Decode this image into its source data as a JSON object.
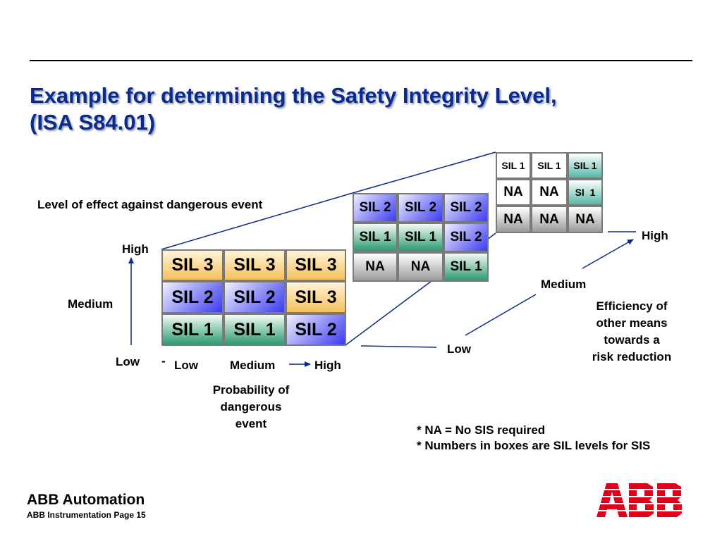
{
  "title": {
    "line1": "Example for determining the Safety Integrity Level,",
    "line2": "(ISA S84.01)"
  },
  "axes": {
    "vertical": {
      "label": "Level of effect against dangerous event",
      "high": "High",
      "medium": "Medium",
      "low": "Low"
    },
    "horizontal": {
      "dash": "-",
      "low": "Low",
      "medium": "Medium",
      "high": "High",
      "label": [
        "Probability of",
        "dangerous",
        "event"
      ]
    },
    "depth": {
      "low": "Low",
      "medium": "Medium",
      "high": "High",
      "label": [
        "Efficiency of",
        "other means",
        "towards a",
        "risk reduction"
      ]
    }
  },
  "matrices": {
    "front": [
      [
        "SIL 3",
        "SIL 3",
        "SIL 3"
      ],
      [
        "SIL 2",
        "SIL 2",
        "SIL 3"
      ],
      [
        "SIL 1",
        "SIL 1",
        "SIL 2"
      ]
    ],
    "middle": [
      [
        "SIL 2",
        "SIL 2",
        "SIL 2"
      ],
      [
        "SIL 1",
        "SIL 1",
        "SIL 2"
      ],
      [
        "NA",
        "NA",
        "SIL 1"
      ]
    ],
    "back": [
      [
        "SIL 1",
        "SIL 1",
        "SIL 1"
      ],
      [
        "NA",
        "NA",
        "SI  1"
      ],
      [
        "NA",
        "NA",
        "NA"
      ]
    ]
  },
  "notes": [
    "* NA = No SIS required",
    "* Numbers in boxes are SIL levels for SIS"
  ],
  "footer": {
    "company": "ABB Automation",
    "page": "ABB Instrumentation Page 15"
  },
  "logo": {
    "text": "ABB",
    "color": "#e3001b"
  },
  "colors": {
    "title": "#0a2a8c",
    "orange": "#f6c15e",
    "blue": "#3b3bf0",
    "green": "#2d9a70",
    "gray": "#9b9b9b"
  }
}
